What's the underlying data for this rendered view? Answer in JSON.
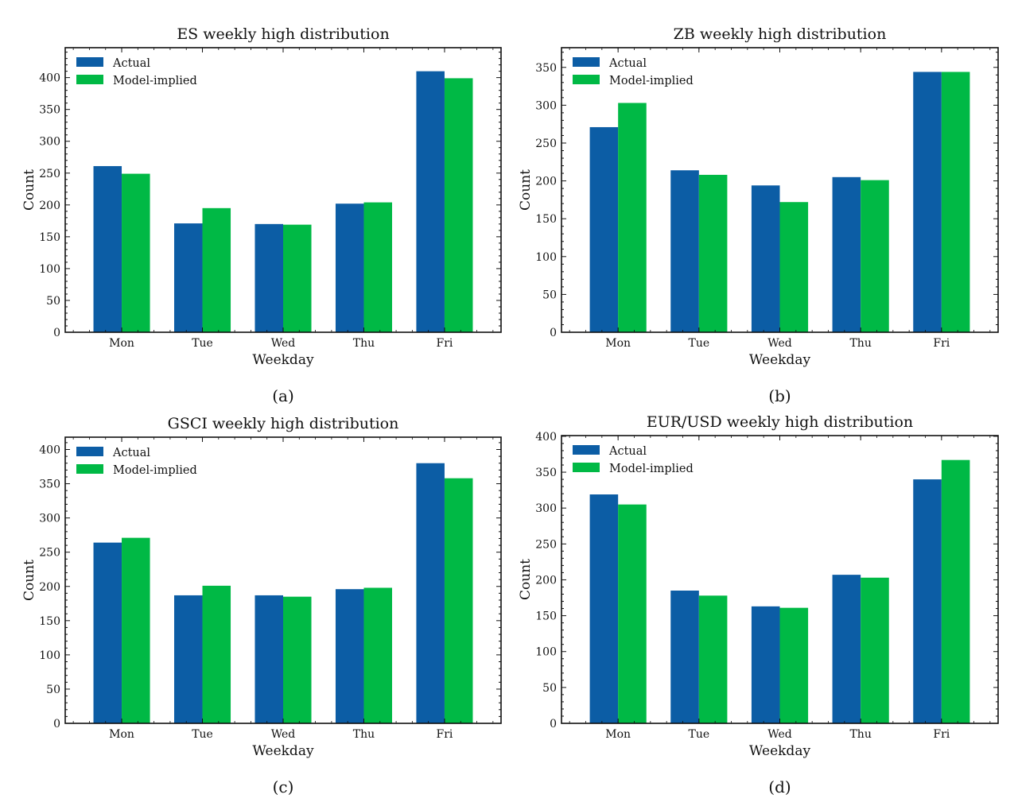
{
  "chart_data": [
    {
      "type": "bar",
      "panel": "(a)",
      "title": "ES weekly high distribution",
      "xlabel": "Weekday",
      "ylabel": "Count",
      "categories": [
        "Mon",
        "Tue",
        "Wed",
        "Thu",
        "Fri"
      ],
      "series": [
        {
          "name": "Actual",
          "values": [
            261,
            171,
            170,
            202,
            410
          ]
        },
        {
          "name": "Model-implied",
          "values": [
            249,
            195,
            169,
            204,
            399
          ]
        }
      ],
      "ylim": [
        0,
        447
      ],
      "yticks": [
        0,
        50,
        100,
        150,
        200,
        250,
        300,
        350,
        400
      ],
      "legend": "top-left",
      "grid": false
    },
    {
      "type": "bar",
      "panel": "(b)",
      "title": "ZB weekly high distribution",
      "xlabel": "Weekday",
      "ylabel": "Count",
      "categories": [
        "Mon",
        "Tue",
        "Wed",
        "Thu",
        "Fri"
      ],
      "series": [
        {
          "name": "Actual",
          "values": [
            271,
            214,
            194,
            205,
            344
          ]
        },
        {
          "name": "Model-implied",
          "values": [
            303,
            208,
            172,
            201,
            344
          ]
        }
      ],
      "ylim": [
        0,
        376
      ],
      "yticks": [
        0,
        50,
        100,
        150,
        200,
        250,
        300,
        350
      ],
      "legend": "top-left",
      "grid": false
    },
    {
      "type": "bar",
      "panel": "(c)",
      "title": "GSCI weekly high distribution",
      "xlabel": "Weekday",
      "ylabel": "Count",
      "categories": [
        "Mon",
        "Tue",
        "Wed",
        "Thu",
        "Fri"
      ],
      "series": [
        {
          "name": "Actual",
          "values": [
            264,
            187,
            187,
            196,
            380
          ]
        },
        {
          "name": "Model-implied",
          "values": [
            271,
            201,
            185,
            198,
            358
          ]
        }
      ],
      "ylim": [
        0,
        418
      ],
      "yticks": [
        0,
        50,
        100,
        150,
        200,
        250,
        300,
        350,
        400
      ],
      "legend": "top-left",
      "grid": false
    },
    {
      "type": "bar",
      "panel": "(d)",
      "title": "EUR/USD weekly high distribution",
      "xlabel": "Weekday",
      "ylabel": "Count",
      "categories": [
        "Mon",
        "Tue",
        "Wed",
        "Thu",
        "Fri"
      ],
      "series": [
        {
          "name": "Actual",
          "values": [
            319,
            185,
            163,
            207,
            340
          ]
        },
        {
          "name": "Model-implied",
          "values": [
            305,
            178,
            161,
            203,
            367
          ]
        }
      ],
      "ylim": [
        0,
        401
      ],
      "yticks": [
        0,
        50,
        100,
        150,
        200,
        250,
        300,
        350,
        400
      ],
      "legend": "top-left",
      "grid": false
    }
  ],
  "colors": {
    "actual": "#0C5DA5",
    "model": "#00B945",
    "axis": "#111111"
  }
}
